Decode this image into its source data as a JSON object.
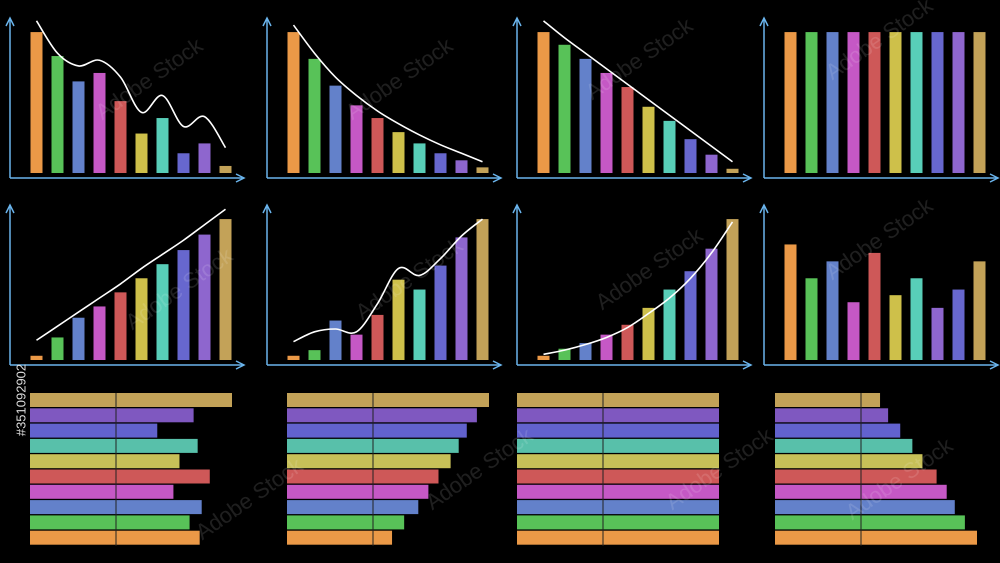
{
  "chart_data": [
    {
      "type": "bar",
      "colors": [
        "#ffa64d",
        "#5fd35f",
        "#6b8cdb",
        "#d65fd6",
        "#e06060",
        "#e0d050",
        "#5fe0c8",
        "#7070e0",
        "#9a6fe0",
        "#d4b060"
      ],
      "values": [
        100,
        83,
        65,
        71,
        51,
        28,
        39,
        14,
        21,
        5
      ],
      "trend": [
        108,
        85,
        76,
        80,
        68,
        43,
        55,
        33,
        40,
        18
      ],
      "ylim": [
        0,
        110
      ]
    },
    {
      "type": "bar",
      "colors": [
        "#ffa64d",
        "#5fd35f",
        "#6b8cdb",
        "#d65fd6",
        "#e06060",
        "#e0d050",
        "#5fe0c8",
        "#7070e0",
        "#9a6fe0",
        "#d4b060"
      ],
      "values": [
        100,
        81,
        62,
        48,
        39,
        29,
        21,
        14,
        9,
        4
      ],
      "trend": [
        105,
        85,
        68,
        55,
        44,
        35,
        27,
        20,
        14,
        8
      ],
      "ylim": [
        0,
        110
      ]
    },
    {
      "type": "bar",
      "colors": [
        "#ffa64d",
        "#5fd35f",
        "#6b8cdb",
        "#d65fd6",
        "#e06060",
        "#e0d050",
        "#5fe0c8",
        "#7070e0",
        "#9a6fe0",
        "#d4b060"
      ],
      "values": [
        100,
        91,
        81,
        71,
        61,
        47,
        37,
        24,
        13,
        3
      ],
      "trend": [
        108,
        96,
        85,
        74,
        63,
        52,
        41,
        30,
        19,
        8
      ],
      "ylim": [
        0,
        110
      ]
    },
    {
      "type": "bar",
      "colors": [
        "#ffa64d",
        "#5fd35f",
        "#6b8cdb",
        "#d65fd6",
        "#e06060",
        "#e0d050",
        "#5fe0c8",
        "#7070e0",
        "#9a6fe0",
        "#d4b060"
      ],
      "values": [
        100,
        100,
        100,
        100,
        100,
        100,
        100,
        100,
        100,
        100
      ],
      "ylim": [
        0,
        110
      ]
    },
    {
      "type": "bar",
      "colors": [
        "#ffa64d",
        "#5fd35f",
        "#6b8cdb",
        "#d65fd6",
        "#e06060",
        "#e0d050",
        "#5fe0c8",
        "#7070e0",
        "#9a6fe0",
        "#d4b060"
      ],
      "values": [
        3,
        16,
        30,
        38,
        48,
        58,
        68,
        78,
        89,
        100
      ],
      "trend": [
        14,
        24,
        34,
        44,
        54,
        65,
        75,
        85,
        96,
        107
      ],
      "ylim": [
        0,
        110
      ]
    },
    {
      "type": "bar",
      "colors": [
        "#ffa64d",
        "#5fd35f",
        "#6b8cdb",
        "#d65fd6",
        "#e06060",
        "#e0d050",
        "#5fe0c8",
        "#7070e0",
        "#9a6fe0",
        "#d4b060"
      ],
      "values": [
        3,
        7,
        28,
        18,
        32,
        57,
        50,
        67,
        87,
        100
      ],
      "trend": [
        13,
        20,
        22,
        20,
        40,
        65,
        60,
        72,
        88,
        100
      ],
      "ylim": [
        0,
        110
      ]
    },
    {
      "type": "bar",
      "colors": [
        "#ffa64d",
        "#5fd35f",
        "#6b8cdb",
        "#d65fd6",
        "#e06060",
        "#e0d050",
        "#5fe0c8",
        "#7070e0",
        "#9a6fe0",
        "#d4b060"
      ],
      "values": [
        3,
        8,
        12,
        18,
        25,
        37,
        50,
        63,
        79,
        100
      ],
      "trend": [
        4,
        7,
        11,
        16,
        23,
        33,
        44,
        58,
        76,
        98
      ],
      "ylim": [
        0,
        110
      ]
    },
    {
      "type": "bar",
      "colors": [
        "#ffa64d",
        "#5fd35f",
        "#6b8cdb",
        "#d65fd6",
        "#e06060",
        "#e0d050",
        "#5fe0c8",
        "#9a6fe0",
        "#7070e0",
        "#d4b060"
      ],
      "values": [
        82,
        58,
        70,
        41,
        76,
        46,
        58,
        37,
        50,
        70
      ],
      "ylim": [
        0,
        110
      ]
    },
    {
      "type": "hbar",
      "colors": [
        "#d4b060",
        "#8a5fd0",
        "#6a6ae0",
        "#5fd0b8",
        "#d8d060",
        "#e06060",
        "#d65fd6",
        "#6b8cdb",
        "#5fd35f",
        "#ffa64d"
      ],
      "values": [
        100,
        81,
        63,
        83,
        74,
        89,
        71,
        85,
        79,
        84
      ],
      "xlim": [
        0,
        100
      ]
    },
    {
      "type": "hbar",
      "colors": [
        "#d4b060",
        "#8a5fd0",
        "#6a6ae0",
        "#5fd0b8",
        "#d8d060",
        "#e06060",
        "#d65fd6",
        "#6b8cdb",
        "#5fd35f",
        "#ffa64d"
      ],
      "values": [
        100,
        94,
        89,
        85,
        81,
        75,
        70,
        65,
        58,
        52
      ],
      "xlim": [
        0,
        100
      ]
    },
    {
      "type": "hbar",
      "colors": [
        "#d4b060",
        "#8a5fd0",
        "#6a6ae0",
        "#5fd0b8",
        "#d8d060",
        "#e06060",
        "#d65fd6",
        "#6b8cdb",
        "#5fd35f",
        "#ffa64d"
      ],
      "values": [
        100,
        100,
        100,
        100,
        100,
        100,
        100,
        100,
        100,
        100
      ],
      "xlim": [
        0,
        100
      ]
    },
    {
      "type": "hbar",
      "colors": [
        "#d4b060",
        "#8a5fd0",
        "#6a6ae0",
        "#5fd0b8",
        "#d8d060",
        "#e06060",
        "#d65fd6",
        "#6b8cdb",
        "#5fd35f",
        "#ffa64d"
      ],
      "values": [
        52,
        56,
        62,
        68,
        73,
        80,
        85,
        89,
        94,
        100
      ],
      "xlim": [
        0,
        100
      ]
    }
  ],
  "watermark": {
    "brand": "Adobe Stock",
    "id": "#351092902"
  }
}
